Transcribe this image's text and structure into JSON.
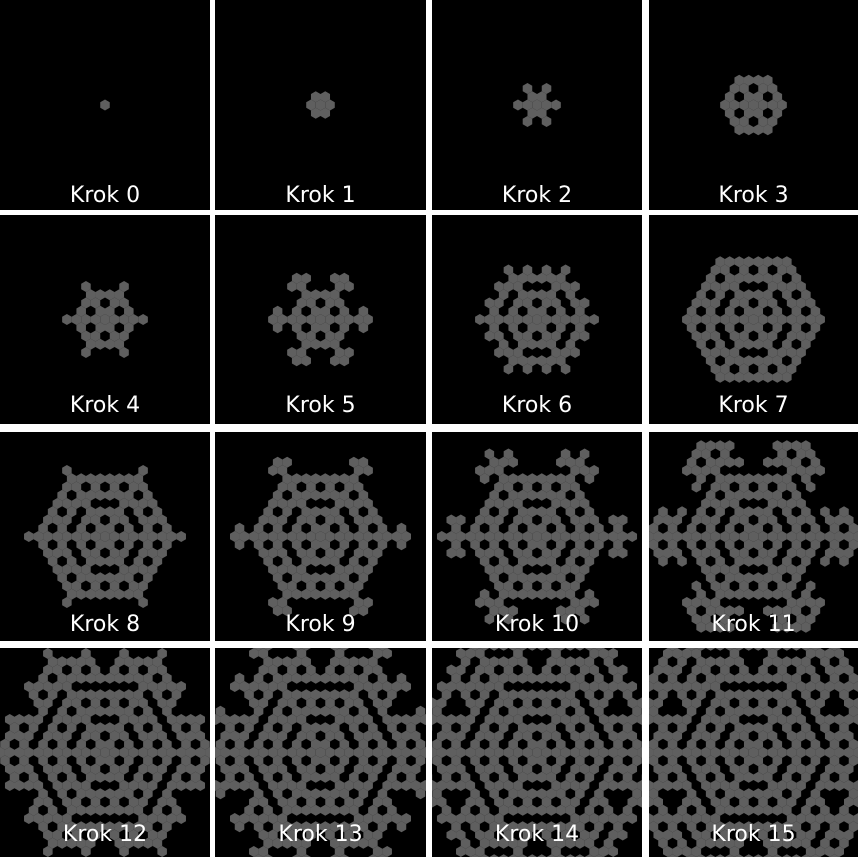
{
  "colors": {
    "background": "#000000",
    "cell": "#5f5f5f",
    "label": "#ffffff",
    "separator": "#ffffff"
  },
  "shape_name": "hex-cell",
  "panels": [
    {
      "label": "Krok 0"
    },
    {
      "label": "Krok 1"
    },
    {
      "label": "Krok 2"
    },
    {
      "label": "Krok 3"
    },
    {
      "label": "Krok 4"
    },
    {
      "label": "Krok 5"
    },
    {
      "label": "Krok 6"
    },
    {
      "label": "Krok 7"
    },
    {
      "label": "Krok 8"
    },
    {
      "label": "Krok 9"
    },
    {
      "label": "Krok 10"
    },
    {
      "label": "Krok 11"
    },
    {
      "label": "Krok 12"
    },
    {
      "label": "Krok 13"
    },
    {
      "label": "Krok 14"
    },
    {
      "label": "Krok 15"
    }
  ]
}
